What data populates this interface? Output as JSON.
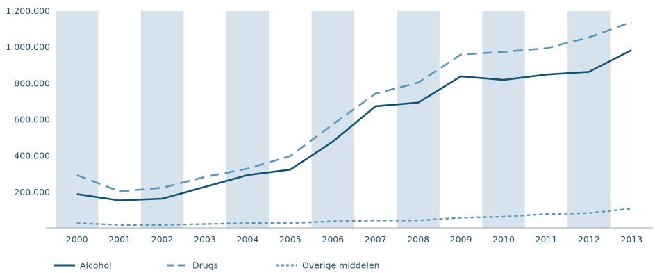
{
  "chart_data": {
    "type": "line",
    "title": "",
    "xlabel": "",
    "ylabel": "",
    "categories": [
      "2000",
      "2001",
      "2002",
      "2003",
      "2004",
      "2005",
      "2006",
      "2007",
      "2008",
      "2009",
      "2010",
      "2011",
      "2012",
      "2013"
    ],
    "ylim": [
      0,
      1200000
    ],
    "y_ticks": [
      200000,
      400000,
      600000,
      800000,
      1000000,
      1200000
    ],
    "y_tick_labels": [
      "200.000",
      "400.000",
      "600.000",
      "800.000",
      "1.000.000",
      "1.200.000"
    ],
    "grid": false,
    "column_banding": true,
    "band_color": "#d6e3ec",
    "legend_position": "bottom-left",
    "series": [
      {
        "name": "Alcohol",
        "style": "solid",
        "color": "#0e5476",
        "values": [
          190000,
          155000,
          165000,
          230000,
          295000,
          325000,
          480000,
          675000,
          695000,
          840000,
          820000,
          850000,
          865000,
          985000
        ]
      },
      {
        "name": "Drugs",
        "style": "dashed",
        "color": "#5a97bd",
        "values": [
          295000,
          205000,
          225000,
          285000,
          330000,
          400000,
          575000,
          745000,
          805000,
          960000,
          975000,
          995000,
          1055000,
          1140000
        ]
      },
      {
        "name": "Overige middelen",
        "style": "dotted",
        "color": "#5a97bd",
        "values": [
          30000,
          20000,
          20000,
          25000,
          30000,
          30000,
          40000,
          45000,
          45000,
          60000,
          65000,
          80000,
          85000,
          110000
        ]
      }
    ]
  }
}
